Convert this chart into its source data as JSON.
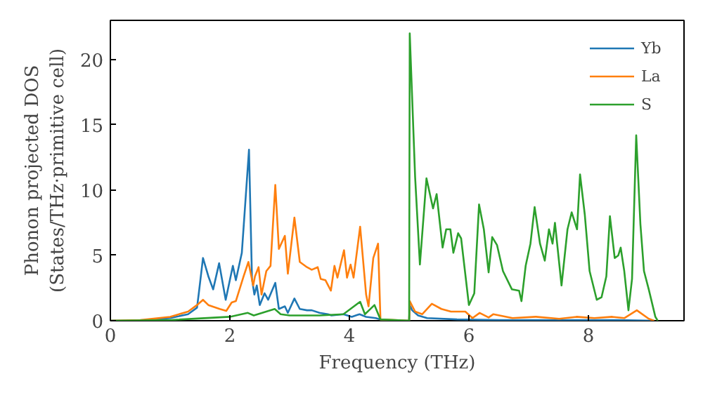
{
  "chart_data": {
    "type": "line",
    "xlabel": "Frequency (THz)",
    "ylabel": "Phonon projected DOS\n(States/THz·primitive cell)",
    "xlim": [
      0,
      9.6
    ],
    "ylim": [
      0,
      23
    ],
    "xticks": [
      0,
      2,
      4,
      6,
      8
    ],
    "yticks": [
      0,
      5,
      10,
      15,
      20
    ],
    "legend": "top right",
    "grid": false,
    "series": [
      {
        "name": "Yb",
        "color": "#1f77b4",
        "x": [
          0,
          0.5,
          1.0,
          1.3,
          1.45,
          1.48,
          1.55,
          1.64,
          1.72,
          1.82,
          1.93,
          2.05,
          2.1,
          2.2,
          2.32,
          2.37,
          2.41,
          2.45,
          2.5,
          2.58,
          2.64,
          2.76,
          2.82,
          2.92,
          2.97,
          3.08,
          3.17,
          3.29,
          3.37,
          3.5,
          3.64,
          3.7,
          3.9,
          4.04,
          4.17,
          4.28,
          4.44,
          4.52,
          4.6,
          5.0,
          5.01,
          5.05,
          5.15,
          5.3,
          5.8,
          6.5,
          7.5,
          8.5,
          9.1
        ],
        "values": [
          0,
          0,
          0.2,
          0.5,
          1.0,
          2.1,
          4.8,
          3.4,
          2.4,
          4.4,
          1.6,
          4.2,
          3.1,
          5.2,
          13.1,
          3.2,
          2.0,
          2.7,
          1.2,
          2.1,
          1.6,
          2.9,
          0.9,
          1.1,
          0.6,
          1.7,
          0.9,
          0.8,
          0.8,
          0.6,
          0.5,
          0.4,
          0.5,
          0.3,
          0.5,
          0.3,
          0.2,
          0.1,
          0,
          0,
          1.2,
          0.8,
          0.4,
          0.2,
          0.1,
          0.05,
          0.05,
          0.05,
          0
        ]
      },
      {
        "name": "La",
        "color": "#ff7f0e",
        "x": [
          0,
          0.5,
          1.0,
          1.3,
          1.45,
          1.55,
          1.64,
          1.83,
          1.94,
          2.03,
          2.1,
          2.23,
          2.31,
          2.39,
          2.42,
          2.48,
          2.53,
          2.61,
          2.68,
          2.76,
          2.82,
          2.92,
          2.97,
          3.08,
          3.17,
          3.29,
          3.37,
          3.47,
          3.52,
          3.6,
          3.69,
          3.75,
          3.8,
          3.91,
          3.96,
          4.02,
          4.07,
          4.18,
          4.28,
          4.32,
          4.4,
          4.48,
          4.52,
          5.0,
          5.01,
          5.1,
          5.22,
          5.38,
          5.54,
          5.7,
          5.94,
          6.06,
          6.18,
          6.33,
          6.41,
          6.73,
          7.12,
          7.51,
          7.8,
          8.1,
          8.4,
          8.6,
          8.81,
          9.01,
          9.1
        ],
        "values": [
          0,
          0.05,
          0.3,
          0.7,
          1.2,
          1.6,
          1.2,
          0.9,
          0.75,
          1.4,
          1.5,
          3.4,
          4.5,
          2.7,
          3.4,
          4.1,
          2.0,
          3.8,
          4.2,
          10.4,
          5.5,
          6.5,
          3.6,
          7.9,
          4.5,
          4.1,
          3.9,
          4.1,
          3.2,
          3.1,
          2.3,
          4.2,
          3.3,
          5.4,
          3.3,
          4.3,
          3.3,
          7.2,
          2.0,
          1.1,
          4.8,
          5.9,
          0.1,
          0,
          1.5,
          0.7,
          0.5,
          1.3,
          0.9,
          0.7,
          0.7,
          0.2,
          0.6,
          0.25,
          0.5,
          0.2,
          0.3,
          0.15,
          0.3,
          0.2,
          0.3,
          0.2,
          0.8,
          0.15,
          0
        ]
      },
      {
        "name": "S",
        "color": "#2ca02c",
        "x": [
          0,
          1.0,
          2.0,
          2.3,
          2.4,
          2.75,
          2.85,
          3.0,
          3.5,
          3.9,
          4.18,
          4.26,
          4.42,
          4.52,
          5.0,
          5.01,
          5.1,
          5.18,
          5.29,
          5.4,
          5.46,
          5.56,
          5.62,
          5.69,
          5.74,
          5.82,
          5.87,
          6.0,
          6.09,
          6.17,
          6.25,
          6.33,
          6.39,
          6.47,
          6.57,
          6.72,
          6.84,
          6.88,
          6.95,
          7.03,
          7.1,
          7.19,
          7.27,
          7.34,
          7.4,
          7.44,
          7.55,
          7.65,
          7.72,
          7.81,
          7.86,
          7.94,
          8.02,
          8.14,
          8.22,
          8.3,
          8.36,
          8.44,
          8.5,
          8.54,
          8.6,
          8.67,
          8.73,
          8.8,
          8.87,
          8.93,
          9.01,
          9.12,
          9.16
        ],
        "values": [
          0,
          0.05,
          0.3,
          0.6,
          0.4,
          0.9,
          0.5,
          0.4,
          0.4,
          0.5,
          1.45,
          0.5,
          1.2,
          0.1,
          0,
          22.0,
          11.0,
          4.3,
          10.9,
          8.6,
          9.7,
          5.6,
          7.0,
          7.0,
          5.2,
          6.7,
          6.3,
          1.2,
          2.1,
          8.9,
          7.0,
          3.7,
          6.4,
          5.8,
          3.8,
          2.4,
          2.3,
          1.5,
          4.2,
          5.9,
          8.7,
          5.9,
          4.6,
          7.0,
          5.9,
          7.5,
          2.7,
          7.0,
          8.3,
          7.0,
          11.2,
          8.1,
          3.8,
          1.6,
          1.8,
          3.4,
          8.0,
          4.8,
          5.0,
          5.6,
          3.8,
          0.8,
          3.2,
          14.2,
          7.4,
          3.8,
          2.4,
          0.3,
          0
        ]
      }
    ]
  }
}
